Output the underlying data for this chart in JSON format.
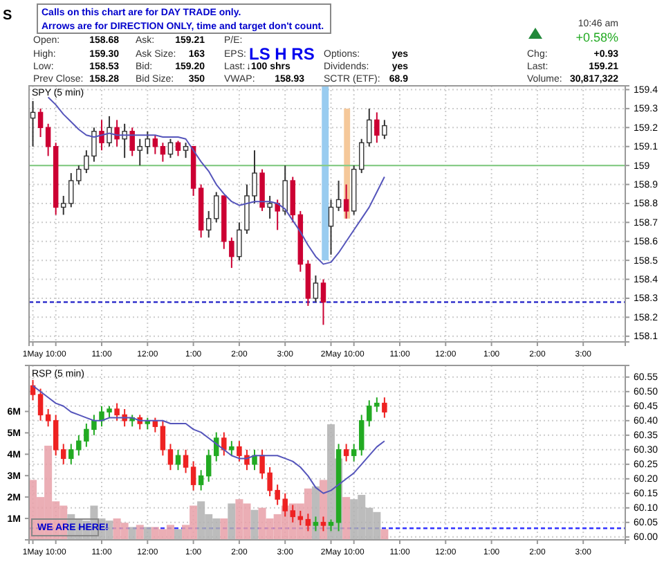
{
  "chart_data": [
    {
      "type": "candlestick",
      "title": "S",
      "subtitle": "SPY (5 min)",
      "annotations": [
        "Calls on this chart are for DAY TRADE only.",
        "Arrows are for DIRECTION ONLY, time and target don't count.",
        "Open:",
        "158.68",
        "High:",
        "159.30",
        "Low:",
        "158.53",
        "Prev Close:",
        "158.28",
        "Ask:",
        "159.21",
        "Ask Size:",
        "163",
        "Bid:",
        "159.20",
        "Bid Size:",
        "350",
        "P/E:",
        "EPS:",
        "Last:",
        "↓100 shrs",
        "VWAP:",
        "158.93",
        "Options:",
        "yes",
        "Dividends:",
        "yes",
        "SCTR (ETF):",
        "68.9",
        "10:46 am",
        "+0.58%",
        "Chg:",
        "+0.93",
        "Last:",
        "159.21",
        "Volume:",
        "30,817,322",
        "LS H RS"
      ],
      "categories": [
        "1May",
        null,
        null,
        "10:00",
        null,
        null,
        null,
        null,
        null,
        "11:00",
        null,
        null,
        null,
        null,
        null,
        "12:00",
        null,
        null,
        null,
        null,
        null,
        "1:00",
        null,
        null,
        null,
        null,
        null,
        "2:00",
        null,
        null,
        null,
        null,
        null,
        "3:00",
        null,
        null,
        null,
        null,
        null,
        "2May",
        null,
        null,
        "10:00",
        null,
        null,
        null,
        null,
        null,
        "11:00",
        null,
        null,
        null,
        null,
        null,
        "12:00",
        null,
        null,
        null,
        null,
        null,
        "1:00",
        null,
        null,
        null,
        null,
        null,
        "2:00",
        null,
        null,
        null,
        null,
        null,
        "3:00",
        null,
        null,
        null,
        null,
        null
      ],
      "ylim": [
        158.07,
        159.42
      ],
      "yticks": [
        158.1,
        158.2,
        158.3,
        158.4,
        158.5,
        158.6,
        158.7,
        158.8,
        158.9,
        159.0,
        159.1,
        159.2,
        159.3,
        159.4
      ],
      "grid": true,
      "ref_lines": [
        {
          "axis": "y",
          "value": 159.0,
          "color": "#88cc88"
        },
        {
          "axis": "y",
          "value": 158.28,
          "color": "#3333cc",
          "line_style": "dashed"
        }
      ],
      "series": [
        {
          "ohlc": [
            [
              159.25,
              159.34,
              159.1,
              159.28
            ],
            [
              159.28,
              159.3,
              159.15,
              159.2
            ],
            [
              159.2,
              159.22,
              159.05,
              159.1
            ],
            [
              159.1,
              159.12,
              158.74,
              158.78
            ],
            [
              158.78,
              158.84,
              158.74,
              158.8
            ],
            [
              158.8,
              158.96,
              158.78,
              158.92
            ],
            [
              158.92,
              159.0,
              158.9,
              158.98
            ],
            [
              158.98,
              159.08,
              158.96,
              159.05
            ],
            [
              159.05,
              159.2,
              159.02,
              159.18
            ],
            [
              159.18,
              159.24,
              159.08,
              159.12
            ],
            [
              159.12,
              159.26,
              159.1,
              159.2
            ],
            [
              159.2,
              159.24,
              159.1,
              159.14
            ],
            [
              159.14,
              159.22,
              159.04,
              159.18
            ],
            [
              159.18,
              159.2,
              159.05,
              159.08
            ],
            [
              159.08,
              159.14,
              159.0,
              159.1
            ],
            [
              159.1,
              159.18,
              159.06,
              159.14
            ],
            [
              159.14,
              159.16,
              159.06,
              159.1
            ],
            [
              159.1,
              159.12,
              159.02,
              159.06
            ],
            [
              159.06,
              159.14,
              159.04,
              159.12
            ],
            [
              159.12,
              159.13,
              159.05,
              159.08
            ],
            [
              159.08,
              159.12,
              159.04,
              159.1
            ],
            [
              159.1,
              159.1,
              158.84,
              158.88
            ],
            [
              158.88,
              158.9,
              158.62,
              158.66
            ],
            [
              158.66,
              158.76,
              158.62,
              158.72
            ],
            [
              158.72,
              158.86,
              158.7,
              158.84
            ],
            [
              158.84,
              158.84,
              158.56,
              158.6
            ],
            [
              158.6,
              158.62,
              158.46,
              158.52
            ],
            [
              158.52,
              158.7,
              158.5,
              158.66
            ],
            [
              158.66,
              158.9,
              158.64,
              158.84
            ],
            [
              158.84,
              159.08,
              158.8,
              158.96
            ],
            [
              158.96,
              158.98,
              158.76,
              158.78
            ],
            [
              158.78,
              158.84,
              158.72,
              158.8
            ],
            [
              158.8,
              158.82,
              158.66,
              158.76
            ],
            [
              158.76,
              159.0,
              158.74,
              158.92
            ],
            [
              158.92,
              158.94,
              158.7,
              158.74
            ],
            [
              158.74,
              158.76,
              158.44,
              158.48
            ],
            [
              158.48,
              158.5,
              158.26,
              158.3
            ],
            [
              158.3,
              158.42,
              158.28,
              158.38
            ],
            [
              158.38,
              158.4,
              158.16,
              158.28
            ],
            [
              158.68,
              158.82,
              158.53,
              158.78
            ],
            [
              158.78,
              158.92,
              158.76,
              158.82
            ],
            [
              158.82,
              158.9,
              158.72,
              158.76
            ],
            [
              158.76,
              159.0,
              158.74,
              158.98
            ],
            [
              158.98,
              159.14,
              158.96,
              159.12
            ],
            [
              159.12,
              159.3,
              159.1,
              159.24
            ],
            [
              159.24,
              159.28,
              159.12,
              159.16
            ],
            [
              159.16,
              159.24,
              159.14,
              159.21
            ],
            null,
            null,
            null,
            null,
            null,
            null,
            null,
            null,
            null,
            null,
            null,
            null,
            null,
            null,
            null,
            null,
            null,
            null,
            null,
            null,
            null,
            null,
            null,
            null,
            null,
            null,
            null,
            null,
            null,
            null,
            null
          ],
          "colors": [
            "#ffffff",
            "#cc0033",
            "#cc0033",
            "#cc0033",
            "#ffffff",
            "#ffffff",
            "#ffffff",
            "#ffffff",
            "#ffffff",
            "#cc0033",
            "#ffffff",
            "#cc0033",
            "#ffffff",
            "#cc0033",
            "#ffffff",
            "#ffffff",
            "#cc0033",
            "#cc0033",
            "#ffffff",
            "#cc0033",
            "#ffffff",
            "#cc0033",
            "#cc0033",
            "#ffffff",
            "#ffffff",
            "#cc0033",
            "#cc0033",
            "#ffffff",
            "#ffffff",
            "#ffffff",
            "#cc0033",
            "#ffffff",
            "#cc0033",
            "#ffffff",
            "#cc0033",
            "#cc0033",
            "#cc0033",
            "#ffffff",
            "#cc0033",
            "#ffffff",
            "#ffffff",
            "#cc0033",
            "#ffffff",
            "#ffffff",
            "#ffffff",
            "#cc0033",
            "#ffffff",
            null,
            null,
            null,
            null,
            null,
            null,
            null,
            null,
            null,
            null,
            null,
            null,
            null,
            null,
            null,
            null,
            null,
            null,
            null,
            null,
            null,
            null,
            null,
            null,
            null,
            null,
            null,
            null,
            null,
            null,
            null
          ]
        },
        {
          "type": "line",
          "color": "#5555bb",
          "values": [
            null,
            null,
            159.36,
            159.32,
            159.27,
            159.23,
            159.19,
            159.16,
            159.15,
            159.16,
            159.17,
            159.16,
            159.16,
            159.16,
            159.16,
            159.16,
            159.16,
            159.15,
            159.15,
            159.15,
            159.14,
            159.08,
            159.02,
            158.97,
            158.9,
            158.85,
            158.81,
            158.79,
            158.8,
            158.81,
            158.81,
            158.81,
            158.8,
            158.77,
            158.71,
            158.65,
            158.58,
            158.52,
            158.48,
            158.49,
            158.54,
            158.6,
            158.66,
            158.72,
            158.78,
            158.86,
            158.94,
            null,
            null,
            null,
            null,
            null,
            null,
            null,
            null,
            null,
            null,
            null,
            null,
            null,
            null,
            null,
            null,
            null,
            null,
            null,
            null,
            null,
            null,
            null,
            null,
            null,
            null,
            null,
            null,
            null,
            null,
            null
          ]
        }
      ]
    },
    {
      "type": "bar",
      "title": "RSP (5 min)",
      "annotations": [
        "WE ARE HERE!"
      ],
      "categories": [
        "1May",
        null,
        null,
        "10:00",
        null,
        null,
        null,
        null,
        null,
        "11:00",
        null,
        null,
        null,
        null,
        null,
        "12:00",
        null,
        null,
        null,
        null,
        null,
        "1:00",
        null,
        null,
        null,
        null,
        null,
        "2:00",
        null,
        null,
        null,
        null,
        null,
        "3:00",
        null,
        null,
        null,
        null,
        null,
        "2May",
        null,
        null,
        "10:00",
        null,
        null,
        null,
        null,
        null,
        "11:00",
        null,
        null,
        null,
        null,
        null,
        "12:00",
        null,
        null,
        null,
        null,
        null,
        "1:00",
        null,
        null,
        null,
        null,
        null,
        "2:00",
        null,
        null,
        null,
        null,
        null,
        "3:00",
        null,
        null,
        null,
        null,
        null
      ],
      "ylim": [
        0,
        8.15
      ],
      "yticks": [
        {
          "value": 1,
          "label": "1M"
        },
        {
          "value": 2,
          "label": "2M"
        },
        {
          "value": 3,
          "label": "3M"
        },
        {
          "value": 4,
          "label": "4M"
        },
        {
          "value": 5,
          "label": "5M"
        },
        {
          "value": 6,
          "label": "6M"
        }
      ],
      "y2lim": [
        59.99,
        60.59
      ],
      "y2ticks": [
        {
          "value": 60,
          "label": "60.00"
        },
        {
          "value": 60.05,
          "label": "60.05"
        },
        {
          "value": 60.1,
          "label": "60.10"
        },
        {
          "value": 60.15,
          "label": "60.15"
        },
        {
          "value": 60.2,
          "label": "60.20"
        },
        {
          "value": 60.25,
          "label": "60.25"
        },
        {
          "value": 60.3,
          "label": "60.30"
        },
        {
          "value": 60.35,
          "label": "60.35"
        },
        {
          "value": 60.4,
          "label": "60.40"
        },
        {
          "value": 60.45,
          "label": "60.45"
        },
        {
          "value": 60.5,
          "label": "60.50"
        },
        {
          "value": 60.55,
          "label": "60.55"
        }
      ],
      "grid": true,
      "ref_lines": [
        {
          "axis": "y2",
          "value": 60.03,
          "color": "#3333ff",
          "line_style": "dashed"
        }
      ],
      "series": [
        {
          "values": [
            2.8,
            2.0,
            4.4,
            1.8,
            1.6,
            1.2,
            1.0,
            0.9,
            1.6,
            1.0,
            0.9,
            1.0,
            0.8,
            0.6,
            0.7,
            0.6,
            0.6,
            0.5,
            0.7,
            0.5,
            0.7,
            1.6,
            1.8,
            1.2,
            1.0,
            1.0,
            1.7,
            1.9,
            1.7,
            1.4,
            1.5,
            1.0,
            1.2,
            1.6,
            1.7,
            1.7,
            2.4,
            2.5,
            2.8,
            5.4,
            3.8,
            2.0,
            1.9,
            2.1,
            1.5,
            1.3,
            0.5,
            null,
            null,
            null,
            null,
            null,
            null,
            null,
            null,
            null,
            null,
            null,
            null,
            null,
            null,
            null,
            null,
            null,
            null,
            null,
            null,
            null,
            null,
            null,
            null,
            null,
            null,
            null,
            null,
            null,
            null,
            null
          ],
          "colors": [
            "#e8a0a8",
            "#e8a0a8",
            "#e8a0a8",
            "#e8a0a8",
            "#e8a0a8",
            "#b0b0b0",
            "#b0b0b0",
            "#b0b0b0",
            "#b0b0b0",
            "#b0b0b0",
            "#b0b0b0",
            "#e8a0a8",
            "#e8a0a8",
            "#b0b0b0",
            "#e8a0a8",
            "#b0b0b0",
            "#e8a0a8",
            "#e8a0a8",
            "#e8a0a8",
            "#b0b0b0",
            "#e8a0a8",
            "#e8a0a8",
            "#b0b0b0",
            "#b0b0b0",
            "#b0b0b0",
            "#e8a0a8",
            "#b0b0b0",
            "#e8a0a8",
            "#e8a0a8",
            "#b0b0b0",
            "#e8a0a8",
            "#e8a0a8",
            "#e8a0a8",
            "#e8a0a8",
            "#e8a0a8",
            "#e8a0a8",
            "#e8a0a8",
            "#b0b0b0",
            "#e8a0a8",
            "#b0b0b0",
            "#b0b0b0",
            "#e8a0a8",
            "#b0b0b0",
            "#b0b0b0",
            "#b0b0b0",
            "#b0b0b0",
            "#e8a0a8",
            null,
            null,
            null,
            null,
            null,
            null,
            null,
            null,
            null,
            null,
            null,
            null,
            null,
            null,
            null,
            null,
            null,
            null,
            null,
            null,
            null,
            null,
            null,
            null,
            null,
            null,
            null,
            null,
            null,
            null,
            null
          ]
        },
        {
          "type": "candlestick",
          "axis": "y2",
          "ohlc": [
            [
              60.52,
              60.54,
              60.47,
              60.49
            ],
            [
              60.49,
              60.51,
              60.4,
              60.42
            ],
            [
              60.42,
              60.44,
              60.38,
              60.4
            ],
            [
              60.4,
              60.42,
              60.28,
              60.3
            ],
            [
              60.3,
              60.32,
              60.25,
              60.27
            ],
            [
              60.27,
              60.32,
              60.25,
              60.3
            ],
            [
              60.3,
              60.35,
              60.28,
              60.33
            ],
            [
              60.33,
              60.39,
              60.31,
              60.37
            ],
            [
              60.37,
              60.42,
              60.35,
              60.4
            ],
            [
              60.4,
              60.45,
              60.38,
              60.43
            ],
            [
              60.43,
              60.45,
              60.41,
              60.44
            ],
            [
              60.44,
              60.46,
              60.4,
              60.42
            ],
            [
              60.42,
              60.44,
              60.38,
              60.4
            ],
            [
              60.4,
              60.42,
              60.38,
              60.41
            ],
            [
              60.41,
              60.42,
              60.37,
              60.39
            ],
            [
              60.39,
              60.41,
              60.37,
              60.4
            ],
            [
              60.4,
              60.41,
              60.36,
              60.38
            ],
            [
              60.38,
              60.4,
              60.28,
              60.3
            ],
            [
              60.3,
              60.32,
              60.23,
              60.25
            ],
            [
              60.25,
              60.3,
              60.23,
              60.28
            ],
            [
              60.28,
              60.3,
              60.22,
              60.24
            ],
            [
              60.24,
              60.26,
              60.16,
              60.18
            ],
            [
              60.18,
              60.23,
              60.16,
              60.21
            ],
            [
              60.21,
              60.3,
              60.19,
              60.28
            ],
            [
              60.28,
              60.36,
              60.26,
              60.34
            ],
            [
              60.34,
              60.36,
              60.28,
              60.3
            ],
            [
              60.3,
              60.33,
              60.28,
              60.31
            ],
            [
              60.31,
              60.33,
              60.26,
              60.28
            ],
            [
              60.28,
              60.3,
              60.23,
              60.25
            ],
            [
              60.25,
              60.3,
              60.23,
              60.28
            ],
            [
              60.28,
              60.3,
              60.2,
              60.22
            ],
            [
              60.22,
              60.24,
              60.14,
              60.16
            ],
            [
              60.16,
              60.18,
              60.11,
              60.13
            ],
            [
              60.13,
              60.15,
              60.07,
              60.09
            ],
            [
              60.09,
              60.11,
              60.05,
              60.07
            ],
            [
              60.07,
              60.09,
              60.04,
              60.06
            ],
            [
              60.06,
              60.08,
              60.02,
              60.04
            ],
            [
              60.04,
              60.07,
              60.02,
              60.05
            ],
            [
              60.05,
              60.07,
              60.02,
              60.04
            ],
            [
              60.04,
              60.06,
              60.02,
              60.05
            ],
            [
              60.05,
              60.32,
              60.02,
              60.3
            ],
            [
              60.3,
              60.32,
              60.26,
              60.28
            ],
            [
              60.28,
              60.32,
              60.26,
              60.3
            ],
            [
              60.3,
              60.42,
              60.28,
              60.4
            ],
            [
              60.4,
              60.47,
              60.38,
              60.45
            ],
            [
              60.45,
              60.48,
              60.43,
              60.46
            ],
            [
              60.46,
              60.48,
              60.41,
              60.43
            ],
            null,
            null,
            null,
            null,
            null,
            null,
            null,
            null,
            null,
            null,
            null,
            null,
            null,
            null,
            null,
            null,
            null,
            null,
            null,
            null,
            null,
            null,
            null,
            null,
            null,
            null,
            null,
            null,
            null,
            null,
            null
          ],
          "colors": [
            "#ee2222",
            "#ee2222",
            "#ee2222",
            "#ee2222",
            "#ee2222",
            "#22aa22",
            "#22aa22",
            "#22aa22",
            "#22aa22",
            "#22aa22",
            "#22aa22",
            "#ee2222",
            "#ee2222",
            "#22aa22",
            "#ee2222",
            "#22aa22",
            "#ee2222",
            "#ee2222",
            "#ee2222",
            "#22aa22",
            "#ee2222",
            "#ee2222",
            "#22aa22",
            "#22aa22",
            "#22aa22",
            "#ee2222",
            "#22aa22",
            "#ee2222",
            "#ee2222",
            "#22aa22",
            "#ee2222",
            "#ee2222",
            "#ee2222",
            "#ee2222",
            "#ee2222",
            "#ee2222",
            "#ee2222",
            "#22aa22",
            "#ee2222",
            "#22aa22",
            "#22aa22",
            "#ee2222",
            "#22aa22",
            "#22aa22",
            "#22aa22",
            "#22aa22",
            "#ee2222",
            null,
            null,
            null,
            null,
            null,
            null,
            null,
            null,
            null,
            null,
            null,
            null,
            null,
            null,
            null,
            null,
            null,
            null,
            null,
            null,
            null,
            null,
            null,
            null,
            null,
            null,
            null,
            null,
            null,
            null,
            null
          ]
        },
        {
          "type": "line",
          "axis": "y2",
          "color": "#5555bb",
          "values": [
            60.52,
            60.5,
            60.48,
            60.46,
            60.45,
            60.43,
            60.42,
            60.41,
            60.4,
            60.4,
            60.41,
            60.41,
            60.41,
            60.41,
            60.4,
            60.4,
            60.4,
            60.4,
            60.39,
            60.39,
            60.39,
            60.37,
            60.36,
            60.34,
            60.32,
            60.3,
            60.28,
            60.27,
            60.27,
            60.28,
            60.28,
            60.28,
            60.28,
            60.27,
            60.26,
            60.24,
            60.21,
            60.17,
            60.15,
            60.16,
            60.18,
            60.2,
            60.22,
            60.25,
            60.28,
            60.31,
            60.33,
            null,
            null,
            null,
            null,
            null,
            null,
            null,
            null,
            null,
            null,
            null,
            null,
            null,
            null,
            null,
            null,
            null,
            null,
            null,
            null,
            null,
            null,
            null,
            null,
            null,
            null,
            null,
            null,
            null,
            null,
            null
          ]
        }
      ]
    }
  ]
}
